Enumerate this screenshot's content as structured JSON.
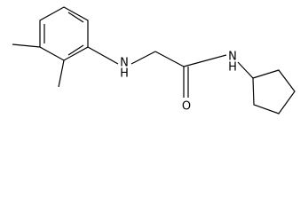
{
  "atoms": [
    {
      "label": "N"
    },
    {
      "label": "H"
    },
    {
      "label": "O"
    },
    {
      "label": "N"
    },
    {
      "label": "H"
    }
  ]
}
